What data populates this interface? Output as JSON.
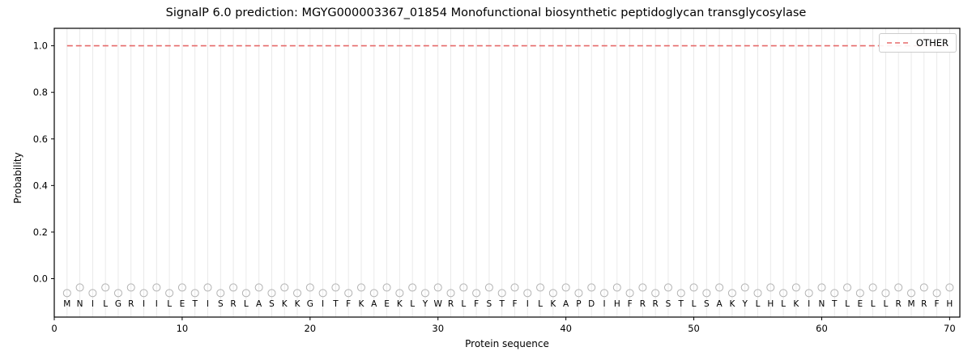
{
  "figure": {
    "title": "SignalP 6.0 prediction: MGYG000003367_01854 Monofunctional biosynthetic peptidoglycan transglycosylase"
  },
  "chart_data": {
    "type": "line",
    "title": "SignalP 6.0 prediction: MGYG000003367_01854 Monofunctional biosynthetic peptidoglycan transglycosylase",
    "xlabel": "Protein sequence",
    "ylabel": "Probability",
    "xlim": [
      0,
      70.8
    ],
    "ylim": [
      -0.165,
      1.075
    ],
    "xticks": [
      0,
      10,
      20,
      30,
      40,
      50,
      60,
      70
    ],
    "yticks": [
      0.0,
      0.2,
      0.4,
      0.6,
      0.8,
      1.0
    ],
    "grid": "vertical line at every residue position",
    "legend_position": "upper right",
    "sequence": "MNILGRIILETISRLASKKGITFKAEKLYWRLFSTFILKAPDIHFRRSTLSAKYLHLKINTLELLRMRFH",
    "series": [
      {
        "name": "OTHER",
        "style": "dashed",
        "color": "#e66a6a",
        "x_start": 1,
        "x_end": 70,
        "y_constant": 1.0
      }
    ],
    "residue_markers": {
      "shape": "open-circle",
      "color": "#b3b3b3",
      "y_center": -0.05,
      "stagger": 0.012
    }
  },
  "legend": {
    "entries": [
      {
        "label": "OTHER",
        "color": "#e66a6a",
        "style": "dashed"
      }
    ]
  },
  "colors": {
    "grid": "#e7e7e7",
    "axis": "#000000",
    "marker": "#b3b3b3",
    "series_other": "#e66a6a",
    "background": "#ffffff"
  }
}
